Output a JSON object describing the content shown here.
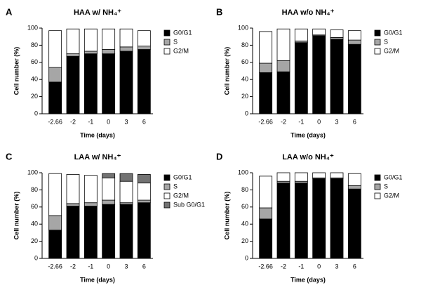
{
  "chart_data": [
    {
      "type": "bar",
      "stacked": true,
      "label": "A",
      "title": "HAA w/ NH₄⁺",
      "xlabel": "Time (days)",
      "ylabel": "Cell number (%)",
      "categories": [
        "-2.66",
        "-2",
        "-1",
        "0",
        "3",
        "6"
      ],
      "series": [
        {
          "name": "G0/G1",
          "color": "#000000",
          "values": [
            37,
            67,
            70,
            70,
            73,
            75
          ]
        },
        {
          "name": "S",
          "color": "#a6a6a6",
          "values": [
            17,
            3,
            3,
            5,
            5,
            4
          ]
        },
        {
          "name": "G2/M",
          "color": "#ffffff",
          "values": [
            43,
            29,
            26,
            24,
            21,
            18
          ]
        }
      ],
      "ylim": [
        0,
        100
      ],
      "yticks": [
        0,
        20,
        40,
        60,
        80,
        100
      ],
      "legend": "right"
    },
    {
      "type": "bar",
      "stacked": true,
      "label": "B",
      "title": "HAA w/o NH₄⁺",
      "xlabel": "Time (days)",
      "ylabel": "Cell number (%)",
      "categories": [
        "-2.66",
        "-2",
        "-1",
        "0",
        "3",
        "6"
      ],
      "series": [
        {
          "name": "G0/G1",
          "color": "#000000",
          "values": [
            48,
            49,
            83,
            91,
            87,
            81
          ]
        },
        {
          "name": "S",
          "color": "#a6a6a6",
          "values": [
            11,
            13,
            2,
            1,
            2,
            5
          ]
        },
        {
          "name": "G2/M",
          "color": "#ffffff",
          "values": [
            37,
            37,
            14,
            7,
            9,
            11
          ]
        }
      ],
      "ylim": [
        0,
        100
      ],
      "yticks": [
        0,
        20,
        40,
        60,
        80,
        100
      ],
      "legend": "right"
    },
    {
      "type": "bar",
      "stacked": true,
      "label": "C",
      "title": "LAA w/ NH₄⁺",
      "xlabel": "Time (days)",
      "ylabel": "Cell number (%)",
      "categories": [
        "-2.66",
        "-2",
        "-1",
        "0",
        "3",
        "6"
      ],
      "series": [
        {
          "name": "G0/G1",
          "color": "#000000",
          "values": [
            33,
            61,
            61,
            63,
            63,
            65
          ]
        },
        {
          "name": "S",
          "color": "#a6a6a6",
          "values": [
            17,
            3,
            4,
            5,
            2,
            3
          ]
        },
        {
          "name": "G2/M",
          "color": "#ffffff",
          "values": [
            49,
            34,
            32,
            26,
            25,
            20
          ]
        },
        {
          "name": "Sub G0/G1",
          "color": "#737373",
          "values": [
            0,
            0,
            0,
            5,
            9,
            10
          ]
        }
      ],
      "ylim": [
        0,
        100
      ],
      "yticks": [
        0,
        20,
        40,
        60,
        80,
        100
      ],
      "legend": "right"
    },
    {
      "type": "bar",
      "stacked": true,
      "label": "D",
      "title": "LAA w/o NH₄⁺",
      "xlabel": "Time (days)",
      "ylabel": "Cell number (%)",
      "categories": [
        "-2.66",
        "-2",
        "-1",
        "0",
        "3",
        "6"
      ],
      "series": [
        {
          "name": "G0/G1",
          "color": "#000000",
          "values": [
            46,
            88,
            88,
            93,
            93,
            81
          ]
        },
        {
          "name": "S",
          "color": "#a6a6a6",
          "values": [
            13,
            2,
            2,
            1,
            1,
            4
          ]
        },
        {
          "name": "G2/M",
          "color": "#ffffff",
          "values": [
            37,
            10,
            10,
            6,
            6,
            14
          ]
        }
      ],
      "ylim": [
        0,
        100
      ],
      "yticks": [
        0,
        20,
        40,
        60,
        80,
        100
      ],
      "legend": "right"
    }
  ]
}
